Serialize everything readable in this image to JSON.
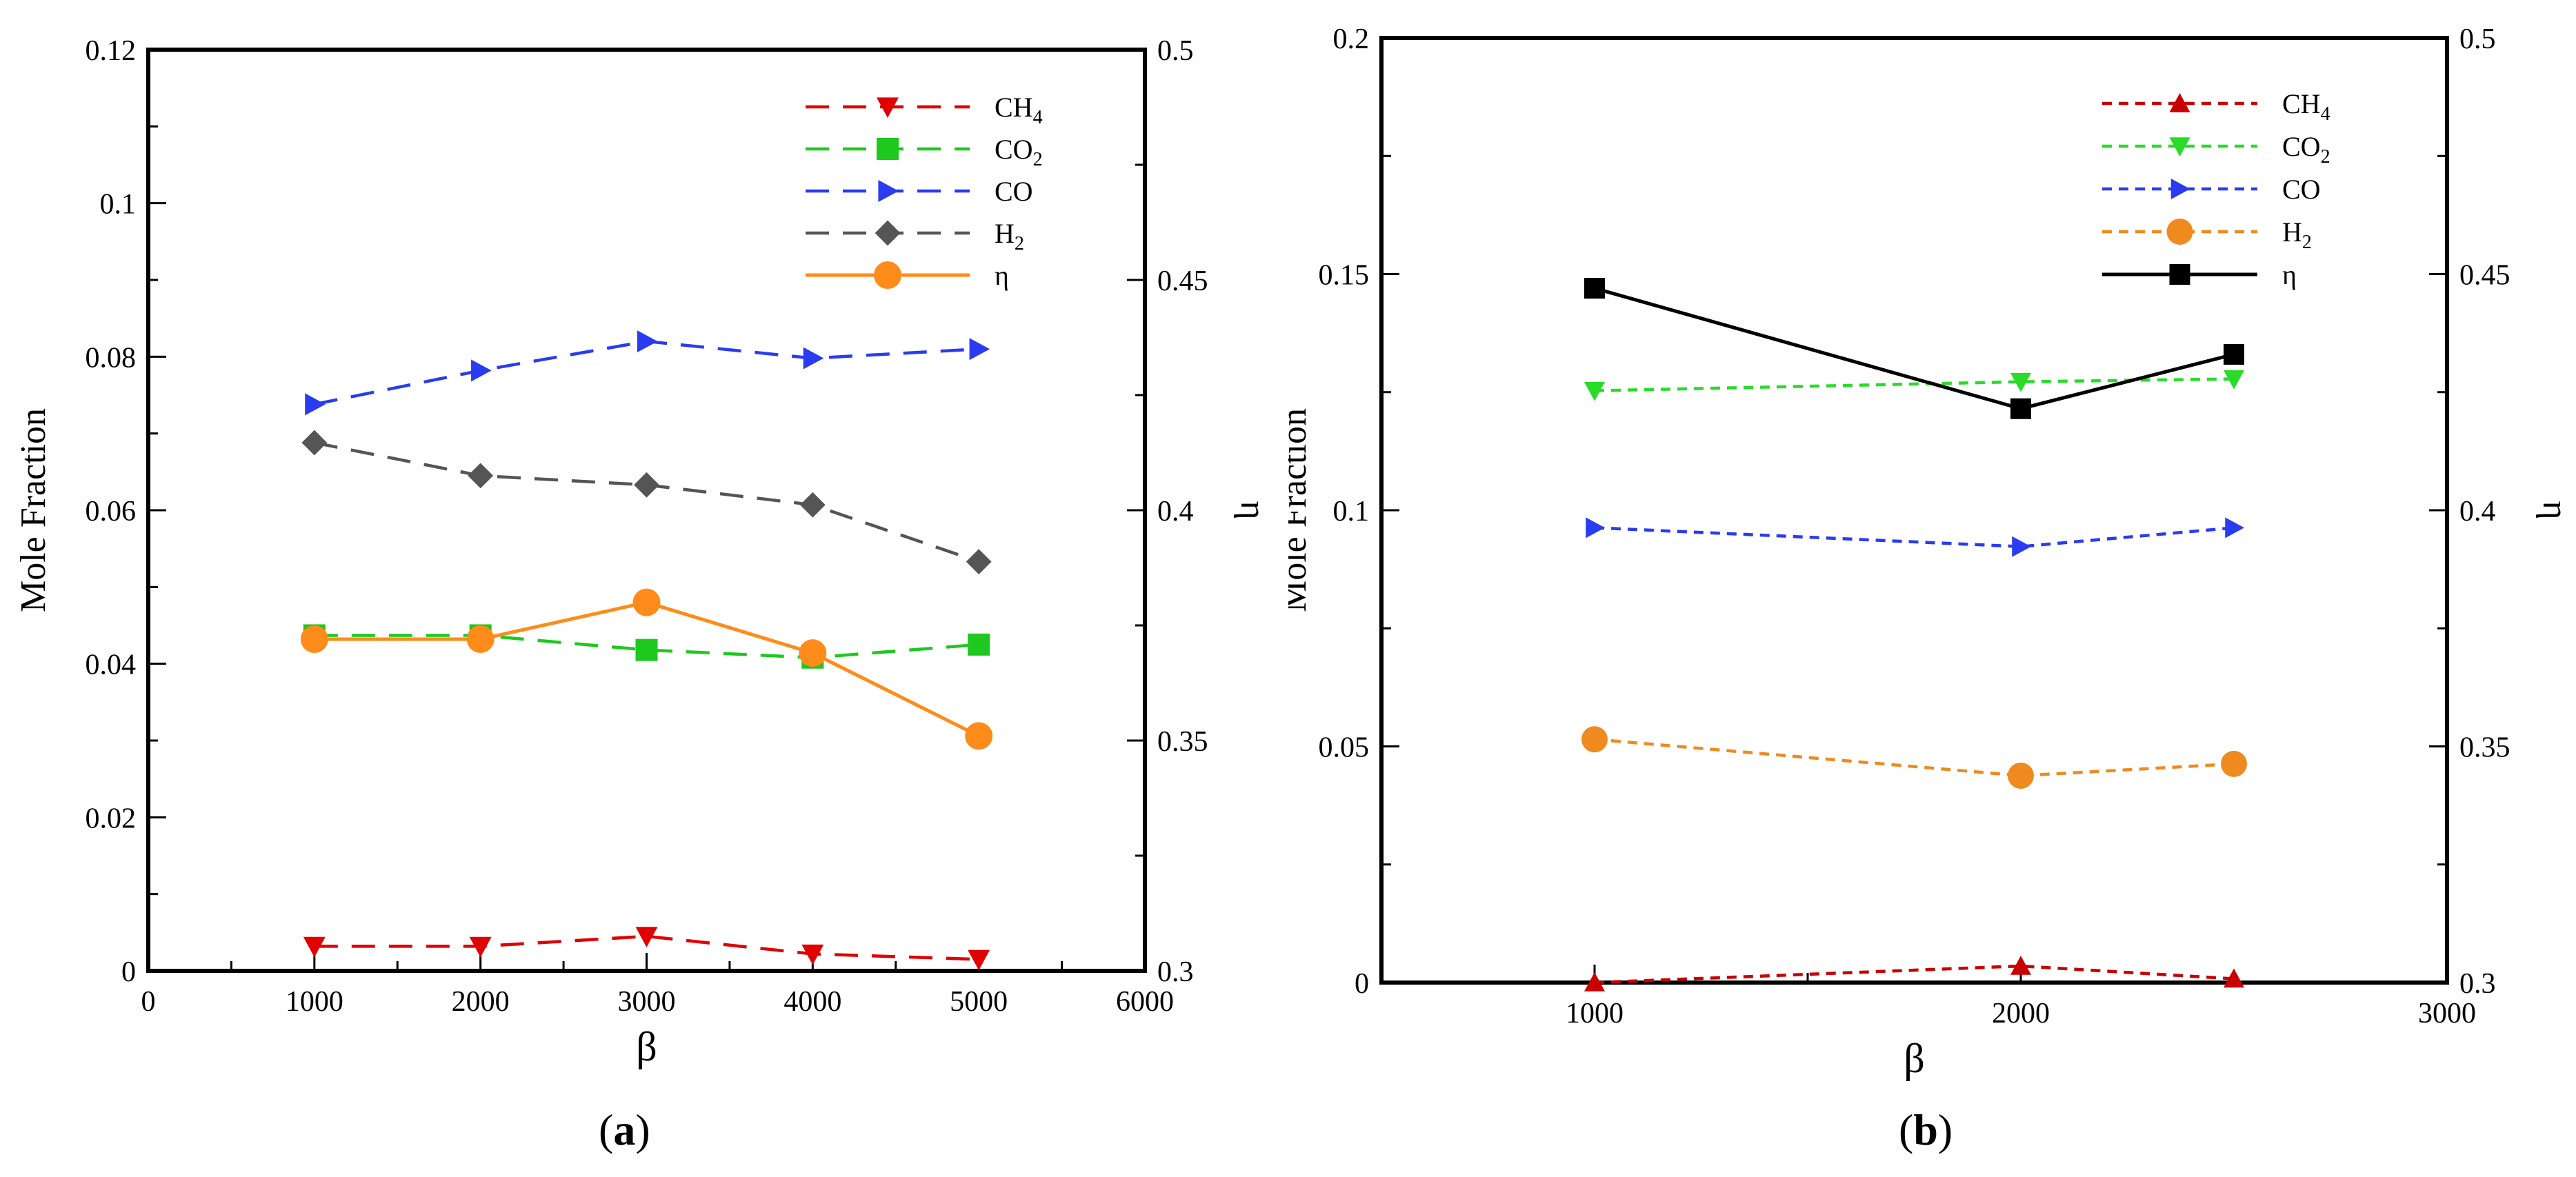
{
  "chart_data": [
    {
      "type": "line",
      "panel_label": "a",
      "title": "",
      "xlabel": "β",
      "ylabel": "Mole Fraction",
      "y2label": "η",
      "xlim": [
        0,
        6000
      ],
      "ylim": [
        0,
        0.12
      ],
      "y2lim": [
        0.3,
        0.5
      ],
      "xticks": [
        0,
        1000,
        2000,
        3000,
        4000,
        5000,
        6000
      ],
      "xtick_labels": [
        "0",
        "1000",
        "2000",
        "3000",
        "4000",
        "5000",
        "6000"
      ],
      "yticks": [
        0,
        0.02,
        0.04,
        0.06,
        0.08,
        0.1,
        0.12
      ],
      "ytick_labels": [
        "0",
        "0.02",
        "0.04",
        "0.06",
        "0.08",
        "0.1",
        "0.12"
      ],
      "y2ticks": [
        0.3,
        0.35,
        0.4,
        0.45,
        0.5
      ],
      "y2tick_labels": [
        "0.3",
        "0.35",
        "0.4",
        "0.45",
        "0.5"
      ],
      "legend_position": "top-right",
      "series": [
        {
          "name": "CH",
          "sub": "4",
          "color": "#e00000",
          "dash": "long",
          "marker": "triangle-down",
          "axis": "left",
          "x": [
            1000,
            2000,
            3000,
            4000,
            5000
          ],
          "values": [
            0.0032,
            0.0032,
            0.0045,
            0.0022,
            0.0015
          ]
        },
        {
          "name": "CO",
          "sub": "2",
          "color": "#1ec81e",
          "dash": "long",
          "marker": "square",
          "axis": "left",
          "x": [
            1000,
            2000,
            3000,
            4000,
            5000
          ],
          "values": [
            0.0437,
            0.0437,
            0.0418,
            0.0408,
            0.0425
          ]
        },
        {
          "name": "CO",
          "sub": "",
          "color": "#2a3cf0",
          "dash": "long",
          "marker": "triangle-right",
          "axis": "left",
          "x": [
            1000,
            2000,
            3000,
            4000,
            5000
          ],
          "values": [
            0.0738,
            0.0782,
            0.082,
            0.0798,
            0.081
          ]
        },
        {
          "name": "H",
          "sub": "2",
          "color": "#555555",
          "dash": "long",
          "marker": "diamond",
          "axis": "left",
          "x": [
            1000,
            2000,
            3000,
            4000,
            5000
          ],
          "values": [
            0.0688,
            0.0645,
            0.0633,
            0.0607,
            0.0533
          ]
        },
        {
          "name": "η",
          "sub": "",
          "color": "#ff8c1a",
          "dash": "solid",
          "marker": "circle",
          "axis": "right",
          "x": [
            1000,
            2000,
            3000,
            4000,
            5000
          ],
          "values": [
            0.372,
            0.372,
            0.38,
            0.369,
            0.351
          ]
        }
      ]
    },
    {
      "type": "line",
      "panel_label": "b",
      "title": "",
      "xlabel": "β",
      "ylabel": "Mole Fraction",
      "y2label": "η",
      "xlim": [
        500,
        3000
      ],
      "ylim": [
        0,
        0.2
      ],
      "y2lim": [
        0.3,
        0.5
      ],
      "xticks": [
        1000,
        2000,
        3000
      ],
      "xtick_labels": [
        "1000",
        "2000",
        "3000"
      ],
      "yticks": [
        0,
        0.05,
        0.1,
        0.15,
        0.2
      ],
      "ytick_labels": [
        "0",
        "0.05",
        "0.1",
        "0.15",
        "0.2"
      ],
      "y2ticks": [
        0.3,
        0.35,
        0.4,
        0.45,
        0.5
      ],
      "y2tick_labels": [
        "0.3",
        "0.35",
        "0.4",
        "0.45",
        "0.5"
      ],
      "legend_position": "top-right",
      "series": [
        {
          "name": "CH",
          "sub": "4",
          "color": "#c80000",
          "dash": "dot",
          "marker": "triangle-up",
          "axis": "left",
          "x": [
            1000,
            2000,
            2500
          ],
          "values": [
            0.0,
            0.0035,
            0.0008
          ]
        },
        {
          "name": "CO",
          "sub": "2",
          "color": "#28dc28",
          "dash": "dot",
          "marker": "triangle-down",
          "axis": "left",
          "x": [
            1000,
            2000,
            2500
          ],
          "values": [
            0.1253,
            0.1272,
            0.1278
          ]
        },
        {
          "name": "CO",
          "sub": "",
          "color": "#2a3cf0",
          "dash": "dot",
          "marker": "triangle-right",
          "axis": "left",
          "x": [
            1000,
            2000,
            2500
          ],
          "values": [
            0.0963,
            0.0923,
            0.0963
          ]
        },
        {
          "name": "H",
          "sub": "2",
          "color": "#ee8a1e",
          "dash": "dot",
          "marker": "circle",
          "axis": "left",
          "x": [
            1000,
            2000,
            2500
          ],
          "values": [
            0.0515,
            0.0438,
            0.0463
          ]
        },
        {
          "name": "η",
          "sub": "",
          "color": "#000000",
          "dash": "solid",
          "marker": "square",
          "axis": "right",
          "x": [
            1000,
            2000,
            2500
          ],
          "values": [
            0.447,
            0.4215,
            0.433
          ]
        }
      ]
    }
  ]
}
